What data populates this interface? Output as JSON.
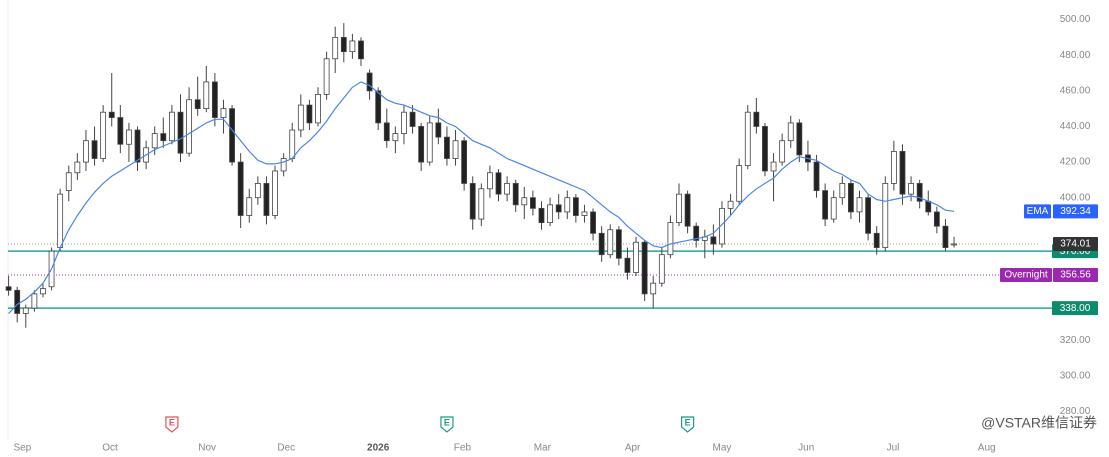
{
  "chart_data": {
    "type": "candlestick",
    "xlim": [
      -1,
      120
    ],
    "xticks": [
      {
        "value": 1.6,
        "label": "Sep"
      },
      {
        "value": 11.8,
        "label": "Oct"
      },
      {
        "value": 23.1,
        "label": "Nov"
      },
      {
        "value": 32.3,
        "label": "Dec"
      },
      {
        "value": 43.0,
        "label": "2026"
      },
      {
        "value": 52.8,
        "label": "Feb"
      },
      {
        "value": 62.1,
        "label": "Mar"
      },
      {
        "value": 72.6,
        "label": "Apr"
      },
      {
        "value": 83.0,
        "label": "May"
      },
      {
        "value": 92.8,
        "label": "Jun"
      },
      {
        "value": 102.9,
        "label": "Jul"
      },
      {
        "value": 113.8,
        "label": "Aug"
      }
    ],
    "ylim": [
      269,
      511
    ],
    "yticks": [
      {
        "value": 500,
        "label": "500.00"
      },
      {
        "value": 480,
        "label": "480.00"
      },
      {
        "value": 460,
        "label": "460.00"
      },
      {
        "value": 440,
        "label": "440.00"
      },
      {
        "value": 420,
        "label": "420.00"
      },
      {
        "value": 400,
        "label": "400.00"
      },
      {
        "value": 320,
        "label": "320.00"
      },
      {
        "value": 300,
        "label": "300.00"
      },
      {
        "value": 280,
        "label": "280.00"
      }
    ],
    "up_color": "#ffffff",
    "down_color": "#222222",
    "wick_color": "#444444",
    "ohlc": [
      [
        350,
        356,
        345,
        348
      ],
      [
        348,
        350,
        330,
        335
      ],
      [
        335,
        340,
        327,
        338
      ],
      [
        338,
        348,
        336,
        346
      ],
      [
        346,
        352,
        344,
        349
      ],
      [
        350,
        372,
        348,
        370
      ],
      [
        372,
        405,
        370,
        402
      ],
      [
        404,
        418,
        398,
        414
      ],
      [
        414,
        425,
        410,
        420
      ],
      [
        420,
        438,
        415,
        432
      ],
      [
        432,
        440,
        418,
        422
      ],
      [
        422,
        452,
        420,
        448
      ],
      [
        448,
        470,
        440,
        445
      ],
      [
        445,
        452,
        425,
        430
      ],
      [
        430,
        442,
        420,
        438
      ],
      [
        438,
        440,
        415,
        420
      ],
      [
        420,
        432,
        416,
        428
      ],
      [
        428,
        440,
        424,
        436
      ],
      [
        436,
        445,
        428,
        432
      ],
      [
        432,
        452,
        430,
        448
      ],
      [
        448,
        458,
        420,
        425
      ],
      [
        425,
        462,
        423,
        455
      ],
      [
        455,
        468,
        446,
        450
      ],
      [
        450,
        474,
        448,
        465
      ],
      [
        465,
        470,
        440,
        445
      ],
      [
        445,
        455,
        436,
        450
      ],
      [
        450,
        452,
        418,
        420
      ],
      [
        420,
        425,
        383,
        390
      ],
      [
        390,
        405,
        386,
        400
      ],
      [
        400,
        412,
        396,
        408
      ],
      [
        408,
        412,
        385,
        390
      ],
      [
        390,
        418,
        388,
        415
      ],
      [
        415,
        425,
        412,
        422
      ],
      [
        422,
        442,
        420,
        438
      ],
      [
        438,
        458,
        434,
        452
      ],
      [
        452,
        455,
        438,
        442
      ],
      [
        442,
        462,
        440,
        458
      ],
      [
        458,
        482,
        455,
        478
      ],
      [
        478,
        496,
        470,
        490
      ],
      [
        490,
        498,
        476,
        482
      ],
      [
        482,
        492,
        478,
        488
      ],
      [
        488,
        490,
        474,
        478
      ],
      [
        470,
        472,
        455,
        460
      ],
      [
        460,
        462,
        438,
        442
      ],
      [
        442,
        450,
        428,
        432
      ],
      [
        432,
        440,
        425,
        436
      ],
      [
        436,
        452,
        430,
        448
      ],
      [
        448,
        452,
        436,
        440
      ],
      [
        440,
        442,
        415,
        420
      ],
      [
        420,
        446,
        418,
        442
      ],
      [
        442,
        450,
        430,
        434
      ],
      [
        434,
        440,
        418,
        422
      ],
      [
        422,
        438,
        418,
        432
      ],
      [
        432,
        434,
        404,
        408
      ],
      [
        408,
        412,
        382,
        388
      ],
      [
        388,
        408,
        384,
        405
      ],
      [
        405,
        418,
        400,
        414
      ],
      [
        414,
        416,
        398,
        402
      ],
      [
        402,
        412,
        398,
        408
      ],
      [
        408,
        410,
        392,
        396
      ],
      [
        396,
        406,
        388,
        400
      ],
      [
        400,
        404,
        390,
        394
      ],
      [
        394,
        398,
        382,
        386
      ],
      [
        386,
        400,
        384,
        396
      ],
      [
        396,
        402,
        388,
        392
      ],
      [
        392,
        404,
        388,
        400
      ],
      [
        400,
        402,
        386,
        390
      ],
      [
        390,
        396,
        386,
        392
      ],
      [
        392,
        394,
        376,
        380
      ],
      [
        380,
        384,
        364,
        368
      ],
      [
        368,
        385,
        366,
        382
      ],
      [
        382,
        384,
        362,
        366
      ],
      [
        366,
        372,
        354,
        358
      ],
      [
        358,
        378,
        356,
        375
      ],
      [
        375,
        376,
        342,
        346
      ],
      [
        346,
        356,
        338,
        352
      ],
      [
        352,
        372,
        350,
        368
      ],
      [
        368,
        390,
        366,
        386
      ],
      [
        386,
        408,
        384,
        402
      ],
      [
        402,
        404,
        380,
        384
      ],
      [
        384,
        386,
        372,
        376
      ],
      [
        376,
        382,
        366,
        378
      ],
      [
        378,
        385,
        368,
        374
      ],
      [
        374,
        398,
        372,
        394
      ],
      [
        394,
        402,
        390,
        398
      ],
      [
        398,
        422,
        396,
        418
      ],
      [
        418,
        452,
        416,
        448
      ],
      [
        448,
        456,
        436,
        440
      ],
      [
        440,
        442,
        412,
        415
      ],
      [
        415,
        425,
        398,
        420
      ],
      [
        420,
        436,
        418,
        432
      ],
      [
        432,
        446,
        428,
        442
      ],
      [
        442,
        444,
        420,
        424
      ],
      [
        424,
        432,
        415,
        420
      ],
      [
        420,
        424,
        400,
        404
      ],
      [
        404,
        408,
        384,
        388
      ],
      [
        388,
        404,
        386,
        400
      ],
      [
        400,
        412,
        396,
        408
      ],
      [
        408,
        410,
        388,
        392
      ],
      [
        392,
        404,
        386,
        400
      ],
      [
        400,
        402,
        376,
        380
      ],
      [
        380,
        384,
        368,
        372
      ],
      [
        372,
        412,
        370,
        408
      ],
      [
        408,
        432,
        404,
        426
      ],
      [
        426,
        430,
        396,
        402
      ],
      [
        402,
        412,
        398,
        408
      ],
      [
        408,
        410,
        394,
        398
      ],
      [
        398,
        404,
        390,
        392
      ],
      [
        392,
        395,
        380,
        384
      ],
      [
        384,
        388,
        370,
        372
      ],
      [
        374,
        378,
        372,
        374.01
      ]
    ],
    "ema": {
      "name": "EMA",
      "color": "#4a86e8",
      "tag_color": "#2962ff",
      "values": [
        335,
        340,
        343,
        347,
        352,
        360,
        372,
        382,
        390,
        397,
        403,
        408,
        412,
        415,
        418,
        421,
        424,
        427,
        429,
        431,
        433,
        436,
        439,
        442,
        444,
        444,
        438,
        432,
        426,
        421,
        419,
        419,
        420,
        422,
        428,
        432,
        437,
        443,
        450,
        456,
        462,
        465,
        463,
        459,
        455,
        453,
        452,
        450,
        448,
        446,
        445,
        442,
        440,
        436,
        432,
        430,
        428,
        425,
        422,
        420,
        418,
        416,
        414,
        412,
        410,
        408,
        406,
        404,
        400,
        396,
        392,
        389,
        384,
        380,
        376,
        373,
        372,
        374,
        375,
        376,
        377,
        378,
        380,
        385,
        390,
        396,
        401,
        405,
        408,
        411,
        416,
        420,
        423,
        422,
        421,
        418,
        415,
        413,
        410,
        408,
        402,
        399,
        398,
        399,
        400,
        401,
        400,
        398,
        396,
        393,
        392.34
      ]
    },
    "last_price_color": "#333333",
    "overnight": {
      "name": "Overnight",
      "value": 356.56,
      "color": "#9c27b0"
    },
    "levels": [
      {
        "value": 370,
        "label": "370.00",
        "color": "#26a69a",
        "tag_color": "#0e8a6e"
      },
      {
        "value": 338,
        "label": "338.00",
        "color": "#26a69a",
        "tag_color": "#0e8a6e"
      }
    ],
    "events": [
      {
        "x": 19,
        "label": "E",
        "color": "#e05656"
      },
      {
        "x": 51,
        "label": "E",
        "color": "#1a9e7e"
      },
      {
        "x": 79,
        "label": "E",
        "color": "#1a9e7e"
      }
    ],
    "watermark": "@VSTAR维信证券"
  }
}
